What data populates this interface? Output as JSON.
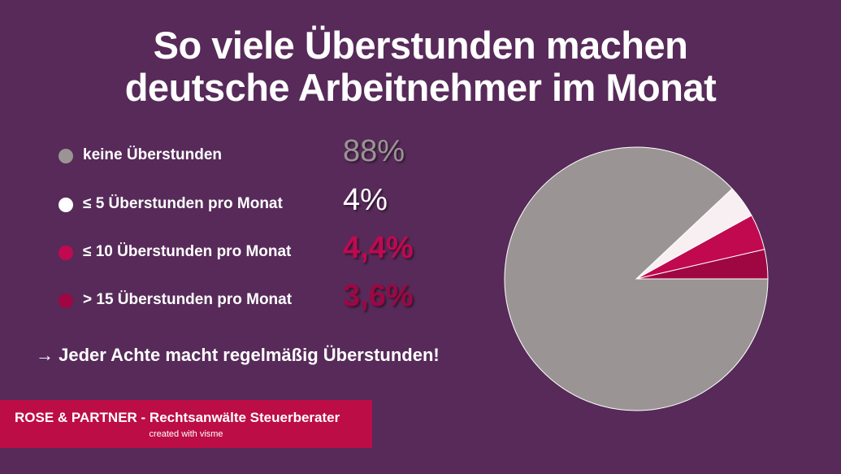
{
  "title_line1": "So viele Überstunden machen",
  "title_line2": "deutsche Arbeitnehmer im Monat",
  "legend": [
    {
      "label": "keine Überstunden",
      "value_text": "88%",
      "dot_color": "#9a9594",
      "value_color": "#9a9594"
    },
    {
      "label": "≤ 5 Überstunden pro Monat",
      "value_text": "4%",
      "dot_color": "#ffffff",
      "value_color": "#ffffff"
    },
    {
      "label": "≤ 10 Überstunden pro Monat",
      "value_text": "4,4%",
      "dot_color": "#c0094f",
      "value_color": "#c0094f"
    },
    {
      "label": "> 15 Überstunden pro Monat",
      "value_text": "3,6%",
      "dot_color": "#9e0742",
      "value_color": "#9e0742"
    }
  ],
  "conclusion": "→ Jeder Achte macht regelmäßig Überstunden!",
  "footer": {
    "company": "ROSE & PARTNER - Rechtsanwälte Steuerberater",
    "credit": "created with visme"
  },
  "chart_data": {
    "type": "pie",
    "start_angle": "3 o'clock, counter-clockwise",
    "slices": [
      {
        "label": "> 15 Überstunden pro Monat",
        "value": 3.6,
        "color": "#9e0742"
      },
      {
        "label": "≤ 10 Überstunden pro Monat",
        "value": 4.4,
        "color": "#c0094f"
      },
      {
        "label": "≤ 5 Überstunden pro Monat",
        "value": 4,
        "color": "#f7eff2"
      },
      {
        "label": "keine Überstunden",
        "value": 88,
        "color": "#9a9594"
      }
    ]
  }
}
